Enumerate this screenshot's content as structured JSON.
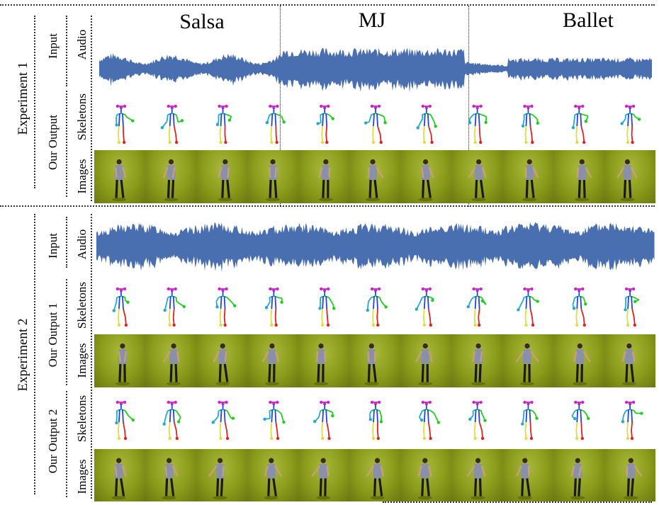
{
  "columns": [
    "Salsa",
    "MJ",
    "Ballet"
  ],
  "experiment1": {
    "label": "Experiment 1",
    "group_input": "Input",
    "group_output": "Our Output",
    "rows": [
      "Audio",
      "Skeletons",
      "Images"
    ]
  },
  "experiment2": {
    "label": "Experiment 2",
    "group_input": "Input",
    "group_output1": "Our Output 1",
    "group_output2": "Our Output 2",
    "rows": [
      "Audio",
      "Skeletons",
      "Images",
      "Skeletons",
      "Images"
    ]
  },
  "colors": {
    "waveform": "#4a6fb0",
    "background_green": "#8a9a1a",
    "skeleton_head": "#cc22cc",
    "skeleton_left_arm": "#22cc22",
    "skeleton_right_arm": "#22aacc",
    "skeleton_torso": "#2244dd",
    "skeleton_left_leg": "#dd2222",
    "skeleton_right_leg": "#dddd44"
  }
}
